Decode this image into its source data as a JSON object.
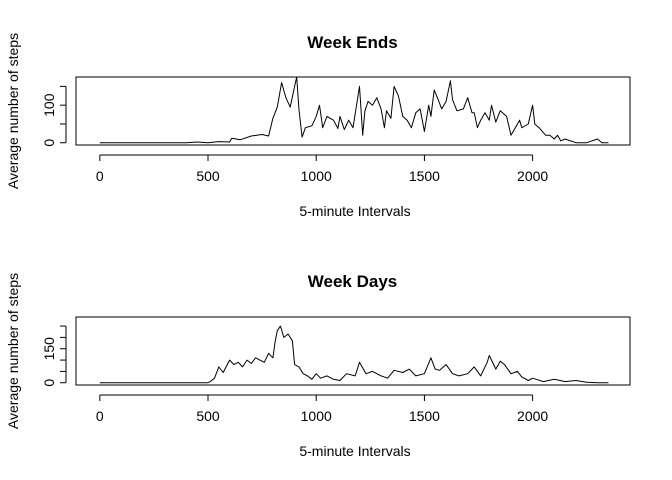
{
  "shared_ylabel": "Average number of steps",
  "chart_data": [
    {
      "type": "line",
      "title": "Week Ends",
      "xlabel": "5-minute Intervals",
      "ylabel": "Average number of steps",
      "xlim": [
        -110,
        2450
      ],
      "ylim": [
        -6,
        175
      ],
      "xticks": [
        0,
        500,
        1000,
        1500,
        2000
      ],
      "xtick_labels": [
        "0",
        "500",
        "1000",
        "1500",
        "2000"
      ],
      "yticks": [
        0,
        50,
        100,
        150
      ],
      "ytick_labels": [
        "0",
        "",
        "100",
        ""
      ],
      "series": [
        {
          "x": [
            0,
            100,
            200,
            300,
            400,
            450,
            500,
            550,
            600,
            610,
            650,
            700,
            750,
            780,
            800,
            820,
            840,
            860,
            880,
            900,
            910,
            920,
            935,
            950,
            980,
            1000,
            1015,
            1030,
            1050,
            1080,
            1100,
            1110,
            1130,
            1150,
            1170,
            1200,
            1215,
            1225,
            1240,
            1260,
            1280,
            1300,
            1315,
            1325,
            1345,
            1360,
            1380,
            1400,
            1420,
            1440,
            1460,
            1480,
            1500,
            1520,
            1530,
            1545,
            1560,
            1580,
            1600,
            1620,
            1630,
            1650,
            1680,
            1700,
            1720,
            1730,
            1745,
            1760,
            1780,
            1800,
            1810,
            1830,
            1850,
            1880,
            1900,
            1920,
            1940,
            1950,
            1980,
            2000,
            2010,
            2030,
            2060,
            2080,
            2100,
            2115,
            2130,
            2150,
            2200,
            2250,
            2300,
            2320,
            2350
          ],
          "y": [
            0,
            0,
            0,
            0,
            0,
            2,
            0,
            3,
            2,
            12,
            8,
            18,
            22,
            18,
            65,
            95,
            160,
            120,
            95,
            150,
            175,
            90,
            15,
            40,
            45,
            70,
            100,
            40,
            70,
            60,
            38,
            70,
            35,
            60,
            40,
            150,
            20,
            85,
            110,
            100,
            120,
            90,
            40,
            85,
            65,
            150,
            125,
            70,
            60,
            40,
            80,
            90,
            30,
            100,
            70,
            140,
            120,
            90,
            110,
            165,
            115,
            85,
            90,
            120,
            80,
            80,
            40,
            60,
            80,
            60,
            100,
            55,
            85,
            70,
            20,
            40,
            60,
            40,
            50,
            100,
            50,
            40,
            20,
            20,
            10,
            20,
            5,
            10,
            0,
            0,
            10,
            0,
            0
          ]
        }
      ]
    },
    {
      "type": "line",
      "title": "Week Days",
      "xlabel": "5-minute Intervals",
      "ylabel": "Average number of steps",
      "xlim": [
        -110,
        2450
      ],
      "ylim": [
        -10,
        290
      ],
      "xticks": [
        0,
        500,
        1000,
        1500,
        2000
      ],
      "xtick_labels": [
        "0",
        "500",
        "1000",
        "1500",
        "2000"
      ],
      "yticks": [
        0,
        50,
        100,
        150,
        200,
        250
      ],
      "ytick_labels": [
        "0",
        "",
        "",
        "150",
        "",
        ""
      ],
      "series": [
        {
          "x": [
            0,
            100,
            200,
            300,
            400,
            450,
            500,
            510,
            530,
            550,
            570,
            600,
            620,
            640,
            660,
            680,
            700,
            720,
            740,
            760,
            780,
            800,
            810,
            820,
            835,
            850,
            870,
            890,
            900,
            920,
            940,
            960,
            980,
            1000,
            1020,
            1050,
            1080,
            1110,
            1140,
            1180,
            1200,
            1230,
            1260,
            1300,
            1330,
            1360,
            1400,
            1430,
            1460,
            1500,
            1530,
            1550,
            1570,
            1600,
            1630,
            1660,
            1700,
            1730,
            1760,
            1790,
            1800,
            1830,
            1850,
            1870,
            1900,
            1930,
            1950,
            1980,
            2000,
            2050,
            2100,
            2150,
            2200,
            2250,
            2300,
            2350
          ],
          "y": [
            0,
            0,
            0,
            0,
            0,
            0,
            0,
            5,
            20,
            70,
            45,
            100,
            80,
            90,
            70,
            100,
            85,
            110,
            100,
            90,
            130,
            110,
            180,
            230,
            250,
            200,
            215,
            185,
            80,
            70,
            40,
            30,
            15,
            40,
            20,
            30,
            15,
            10,
            40,
            30,
            90,
            40,
            50,
            30,
            20,
            55,
            45,
            60,
            30,
            40,
            110,
            60,
            55,
            80,
            40,
            30,
            40,
            70,
            30,
            90,
            120,
            60,
            95,
            80,
            40,
            50,
            25,
            10,
            20,
            5,
            15,
            5,
            10,
            2,
            0,
            0
          ]
        }
      ]
    }
  ]
}
